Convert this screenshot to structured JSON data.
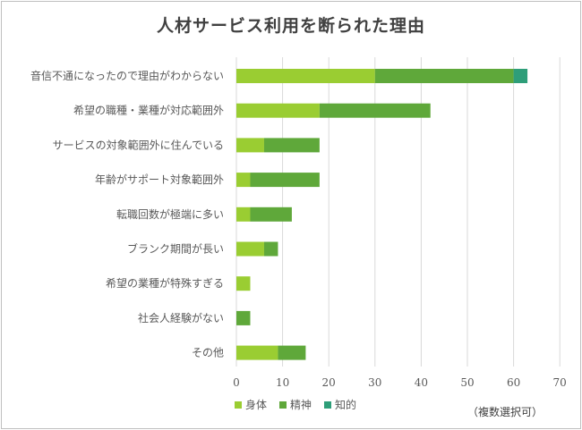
{
  "chart_data": {
    "type": "bar",
    "orientation": "horizontal",
    "stacked": true,
    "title": "人材サービス利用を断られた理由",
    "categories": [
      "音信不通になったので理由がわからない",
      "希望の職種・業種が対応範囲外",
      "サービスの対象範囲外に住んでいる",
      "年齢がサポート対象範囲外",
      "転職回数が極端に多い",
      "ブランク期間が長い",
      "希望の業種が特殊すぎる",
      "社会人経験がない",
      "その他"
    ],
    "series": [
      {
        "name": "身体",
        "color": "#9acd32",
        "values": [
          30,
          18,
          6,
          3,
          3,
          6,
          3,
          0,
          9
        ]
      },
      {
        "name": "精神",
        "color": "#5fa83a",
        "values": [
          30,
          24,
          12,
          15,
          9,
          3,
          0,
          3,
          6
        ]
      },
      {
        "name": "知的",
        "color": "#2e9e79",
        "values": [
          3,
          0,
          0,
          0,
          0,
          0,
          0,
          0,
          0
        ]
      }
    ],
    "xlim": [
      0,
      70
    ],
    "xticks": [
      0,
      10,
      20,
      30,
      40,
      50,
      60,
      70
    ],
    "grid": true,
    "legend": "bottom",
    "note": "（複数選択可）"
  }
}
